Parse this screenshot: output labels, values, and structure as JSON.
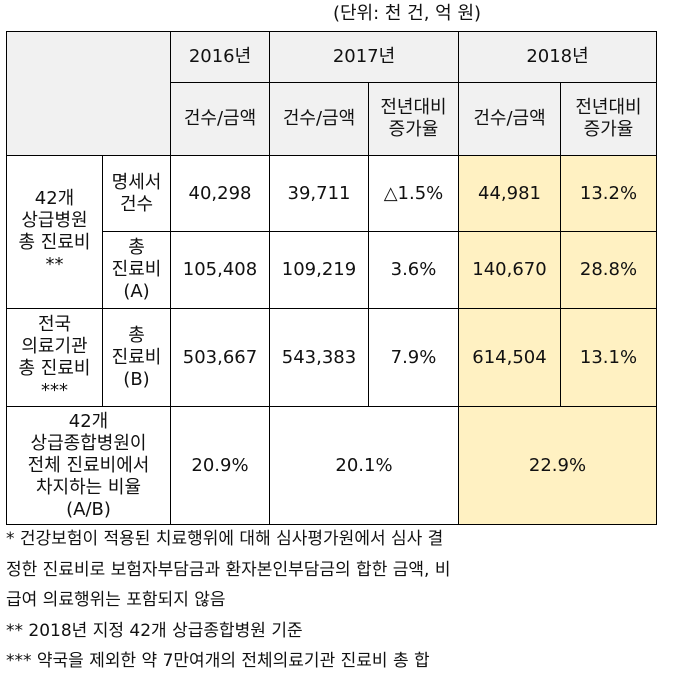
{
  "unit_note": "(단위: 천 건, 억 원)",
  "table": {
    "years": [
      "2016년",
      "2017년",
      "2018년"
    ],
    "subheaders": {
      "amount": "건수/금액",
      "change": [
        "전년대비",
        "증가율"
      ]
    },
    "group_42": [
      "42개",
      "상급병원",
      "총 진료비",
      "**"
    ],
    "row_claims": {
      "label": [
        "명세서",
        "건수"
      ],
      "v2016": "40,298",
      "v2017": "39,711",
      "chg2017": "△1.5%",
      "v2018": "44,981",
      "chg2018": "13.2%"
    },
    "row_total_42": {
      "label": [
        "총",
        "진료비",
        "(A)"
      ],
      "v2016": "105,408",
      "v2017": "109,219",
      "chg2017": "3.6%",
      "v2018": "140,670",
      "chg2018": "28.8%"
    },
    "group_nation": [
      "전국",
      "의료기관",
      "총 진료비",
      "***"
    ],
    "row_total_nation": {
      "label": [
        "총",
        "진료비",
        "(B)"
      ],
      "v2016": "503,667",
      "v2017": "543,383",
      "chg2017": "7.9%",
      "v2018": "614,504",
      "chg2018": "13.1%"
    },
    "row_ratio": {
      "label": [
        "42개",
        "상급종합병원이",
        "전체 진료비에서",
        "차지하는 비율",
        "(A/B)"
      ],
      "v2016": "20.9%",
      "v2017": "20.1%",
      "v2018": "22.9%"
    }
  },
  "notes": [
    "* 건강보험이 적용된 치료행위에 대해 심사평가원에서 심사 결",
    "정한 진료비로 보험자부담금과 환자본인부담금의 합한 금액, 비",
    "급여 의료행위는 포함되지 않음",
    "** 2018년 지정 42개 상급종합병원 기준",
    "*** 약국을 제외한 약 7만여개의 전체의료기관 진료비 총 합"
  ],
  "colors": {
    "header_bg": "#f1f1f1",
    "highlight_2018": "#fff1c2",
    "border": "#000000"
  }
}
